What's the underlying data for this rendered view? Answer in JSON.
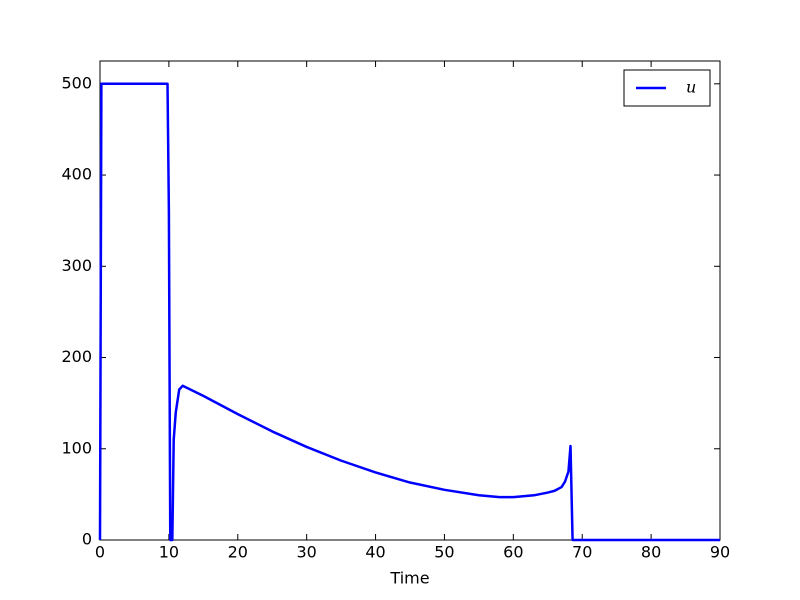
{
  "chart_data": {
    "type": "line",
    "xlabel": "Time",
    "x": [
      0,
      0.2,
      9.8,
      10,
      10.2,
      10.5,
      10.7,
      11,
      11.5,
      12,
      15,
      20,
      25,
      30,
      35,
      40,
      45,
      50,
      55,
      58,
      60,
      63,
      65,
      66,
      67,
      67.5,
      68,
      68.3,
      68.6,
      90
    ],
    "series": [
      {
        "name": "u",
        "color": "#0000ff",
        "values": [
          0,
          500,
          500,
          360,
          0,
          0,
          110,
          140,
          165,
          169,
          158,
          138,
          119,
          102,
          87,
          74,
          63,
          55,
          49,
          47,
          47,
          49,
          52,
          54,
          58,
          64,
          75,
          103,
          0,
          0
        ]
      }
    ],
    "xlim": [
      0,
      90
    ],
    "xticks": [
      0,
      10,
      20,
      30,
      40,
      50,
      60,
      70,
      80,
      90
    ],
    "ylim": [
      0,
      525
    ],
    "yticks": [
      0,
      100,
      200,
      300,
      400,
      500
    ],
    "grid": false,
    "legend": "upper right"
  }
}
